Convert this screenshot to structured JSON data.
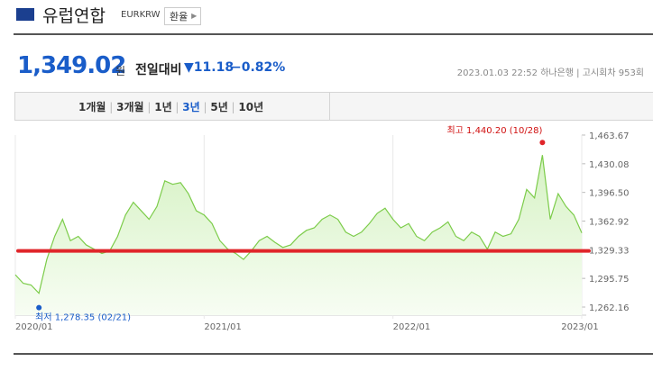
{
  "header": {
    "title": "유럽연합",
    "code": "EURKRW",
    "button": "환율"
  },
  "price": {
    "value": "1,349.02",
    "unit": "원",
    "change_label": "전일대비",
    "change": "11.18",
    "change_percent": "−0.82%",
    "timestamp": "2023.01.03 22:52",
    "bank": "하나은행",
    "round": "고시회차 953회"
  },
  "tabs": {
    "items": [
      "1개월",
      "3개월",
      "1년",
      "3년",
      "5년",
      "10년"
    ],
    "selected": 3
  },
  "chart_data": {
    "type": "line",
    "x": [
      0,
      1,
      2,
      3,
      4,
      5,
      6,
      7,
      8,
      9,
      10,
      11,
      12,
      13,
      14,
      15,
      16,
      17,
      18,
      19,
      20,
      21,
      22,
      23,
      24,
      25,
      26,
      27,
      28,
      29,
      30,
      31,
      32,
      33,
      34,
      35,
      36,
      37,
      38,
      39,
      40,
      41,
      42,
      43,
      44,
      45,
      46,
      47,
      48,
      49,
      50,
      51,
      52,
      53,
      54,
      55,
      56,
      57,
      58,
      59,
      60,
      61,
      62,
      63,
      64,
      65,
      66,
      67,
      68,
      69,
      70,
      71,
      72
    ],
    "series": [
      {
        "color": "#7ccc4a",
        "values": [
          1300,
          1290,
          1288,
          1278.35,
          1318,
          1345,
          1365,
          1340,
          1345,
          1335,
          1330,
          1325,
          1328,
          1345,
          1370,
          1385,
          1375,
          1365,
          1380,
          1410,
          1406,
          1408,
          1395,
          1375,
          1370,
          1360,
          1340,
          1330,
          1325,
          1318,
          1328,
          1340,
          1345,
          1338,
          1332,
          1335,
          1345,
          1352,
          1355,
          1365,
          1370,
          1365,
          1350,
          1345,
          1350,
          1360,
          1372,
          1378,
          1365,
          1355,
          1360,
          1345,
          1340,
          1350,
          1355,
          1362,
          1345,
          1340,
          1350,
          1345,
          1330,
          1350,
          1345,
          1348,
          1365,
          1400,
          1390,
          1440.2,
          1365,
          1395,
          1380,
          1370,
          1349
        ]
      }
    ],
    "xlim": [
      0,
      72
    ],
    "xticks": [
      {
        "value": 0,
        "label": "2020/01"
      },
      {
        "value": 24,
        "label": "2021/01"
      },
      {
        "value": 48,
        "label": "2022/01"
      },
      {
        "value": 72,
        "label": "2023/01"
      }
    ],
    "ylim": [
      1262.16,
      1463.67
    ],
    "yticks": [
      {
        "value": 1262.16,
        "label": "1,262.16"
      },
      {
        "value": 1295.75,
        "label": "1,295.75"
      },
      {
        "value": 1329.33,
        "label": "1,329.33"
      },
      {
        "value": 1362.92,
        "label": "1,362.92"
      },
      {
        "value": 1396.5,
        "label": "1,396.50"
      },
      {
        "value": 1430.08,
        "label": "1,430.08"
      },
      {
        "value": 1463.67,
        "label": "1,463.67"
      }
    ],
    "reference_line": {
      "value": 1328,
      "color": "#e0252a"
    },
    "high_label": "최고 1,440.20 (10/28)",
    "low_label": "최저 1,278.35 (02/21)"
  }
}
